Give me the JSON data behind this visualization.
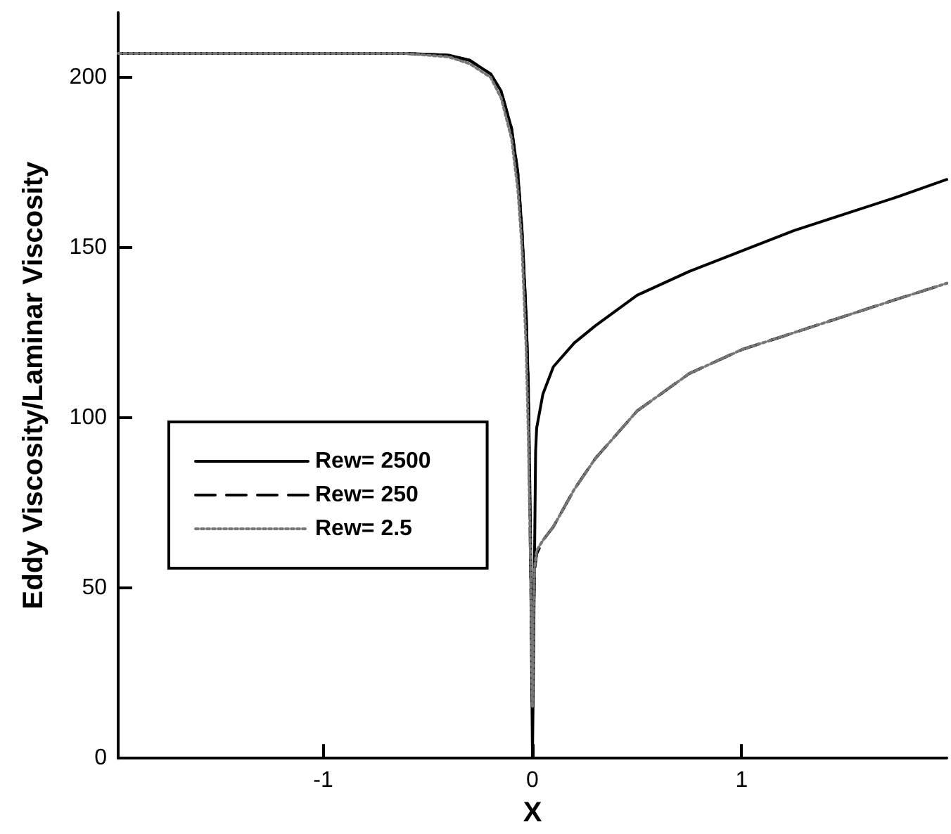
{
  "chart_data": {
    "type": "line",
    "xlabel": "X",
    "ylabel": "Eddy Viscosity/Laminar Viscosity",
    "xlim": [
      -1.98,
      1.98
    ],
    "xticks": [
      -1,
      0,
      1
    ],
    "ylim": [
      0,
      219
    ],
    "yticks": [
      0,
      50,
      100,
      150,
      200
    ],
    "grid": false,
    "legend": "left",
    "marker": "none",
    "series": [
      {
        "name": "Rew= 2500",
        "color": "#000000",
        "line_style": "solid",
        "x": [
          -1.98,
          -1,
          -0.6,
          -0.4,
          -0.3,
          -0.2,
          -0.15,
          -0.1,
          -0.07,
          -0.05,
          -0.03,
          -0.02,
          -0.01,
          0,
          0.01,
          0.015,
          0.02,
          0.05,
          0.1,
          0.2,
          0.3,
          0.5,
          0.75,
          1,
          1.25,
          1.5,
          1.75,
          1.98
        ],
        "values": [
          207,
          207,
          207,
          206.5,
          205,
          201,
          196,
          185,
          172,
          155,
          130,
          110,
          70,
          0,
          60,
          90,
          97,
          107,
          115,
          122,
          127,
          136,
          143,
          149,
          155,
          160,
          165,
          170
        ]
      },
      {
        "name": "Rew= 250",
        "color": "#000000",
        "line_style": "dashed",
        "x": [
          -1.98,
          -1,
          -0.6,
          -0.4,
          -0.3,
          -0.2,
          -0.15,
          -0.1,
          -0.07,
          -0.05,
          -0.03,
          -0.02,
          -0.01,
          0,
          0.005,
          0.01,
          0.02,
          0.05,
          0.1,
          0.2,
          0.3,
          0.5,
          0.75,
          1,
          1.25,
          1.5,
          1.75,
          1.98
        ],
        "values": [
          207,
          207,
          207,
          206.5,
          205,
          201,
          196,
          185,
          172,
          155,
          130,
          110,
          60,
          12,
          40,
          55,
          60,
          64,
          68,
          79,
          88,
          102,
          113,
          120,
          125,
          130,
          135,
          139.5
        ]
      },
      {
        "name": "Rew= 2.5",
        "color": "#777777",
        "line_style": "dotted",
        "x": [
          -1.98,
          -1,
          -0.6,
          -0.4,
          -0.3,
          -0.2,
          -0.15,
          -0.1,
          -0.07,
          -0.05,
          -0.03,
          -0.02,
          -0.01,
          0,
          0.005,
          0.01,
          0.02,
          0.05,
          0.1,
          0.2,
          0.3,
          0.5,
          0.75,
          1,
          1.25,
          1.5,
          1.75,
          1.98
        ],
        "values": [
          207,
          207,
          207,
          206,
          204,
          200,
          194,
          182,
          167,
          150,
          120,
          95,
          60,
          15,
          42,
          56,
          61,
          64,
          68,
          79,
          88,
          102,
          113,
          120,
          125,
          130,
          135,
          139.5
        ]
      }
    ]
  }
}
